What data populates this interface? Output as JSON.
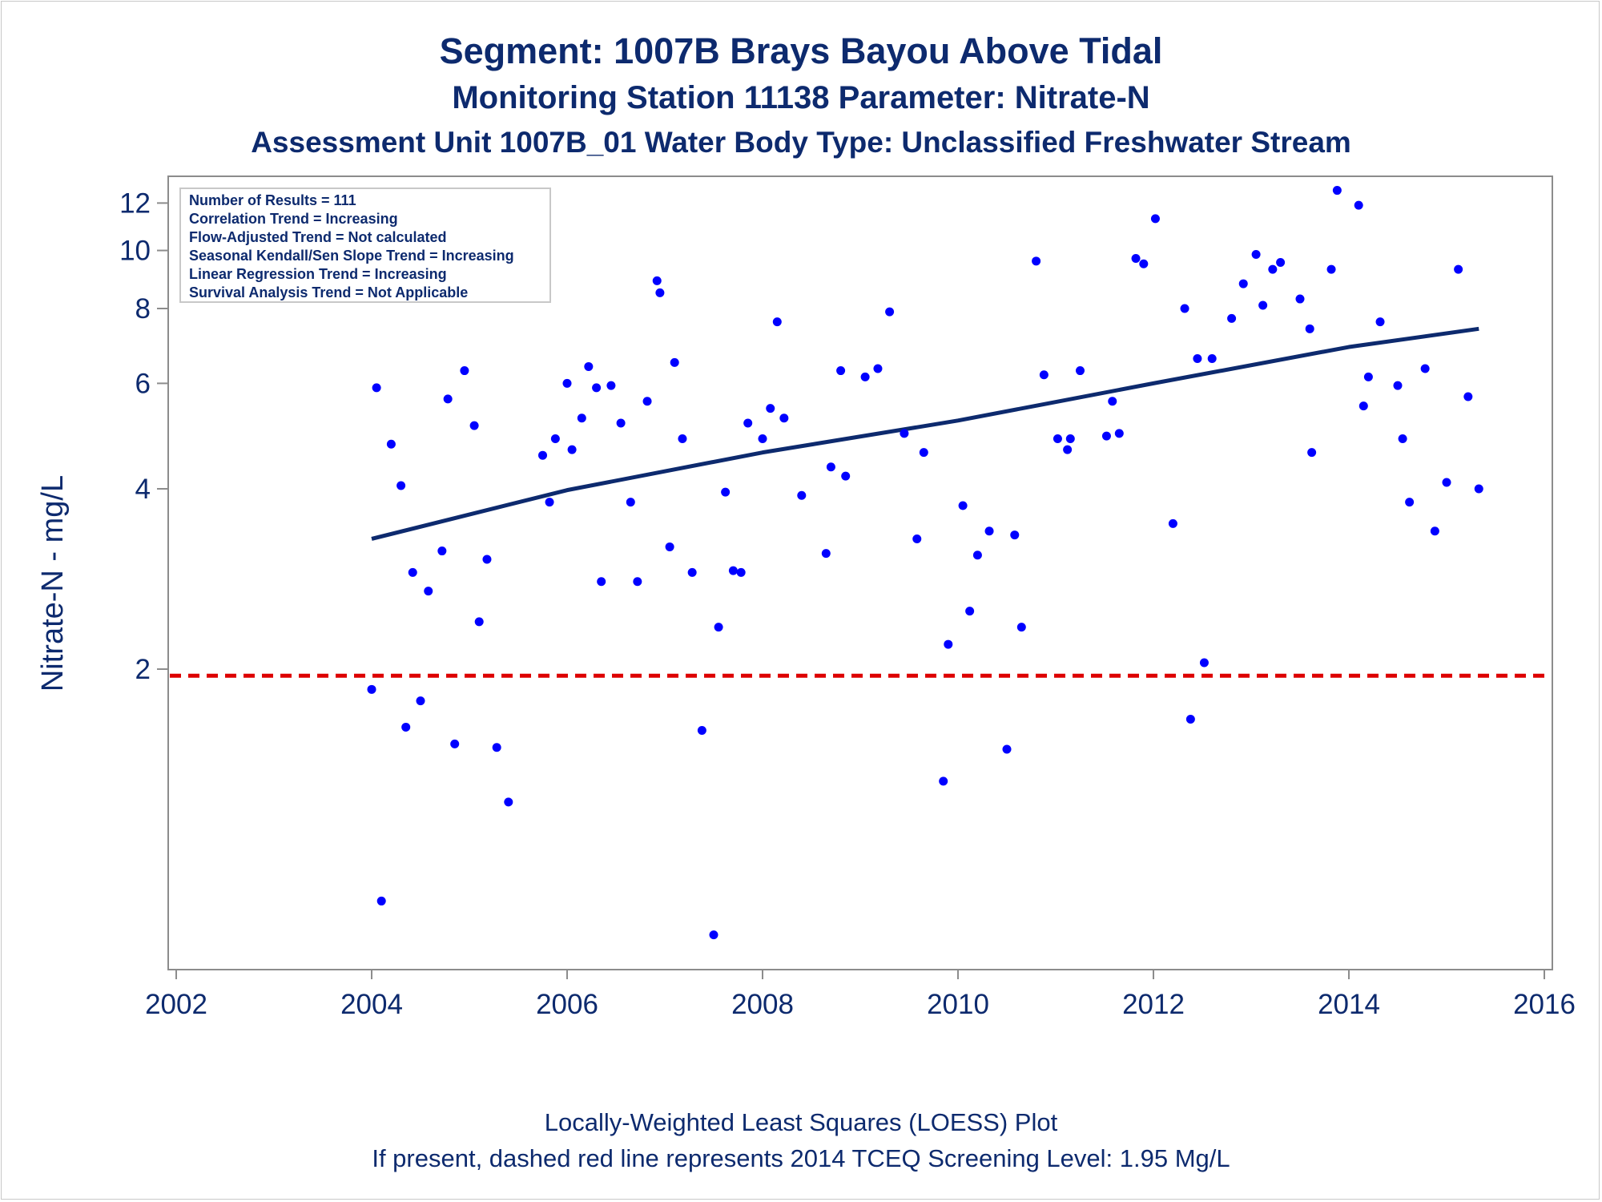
{
  "chart_data": {
    "type": "scatter",
    "title": "Segment: 1007B  Brays Bayou Above Tidal",
    "subtitle": "Monitoring Station 11138 Parameter: Nitrate-N",
    "subtitle2": "Assessment Unit 1007B_01   Water Body Type: Unclassified Freshwater Stream",
    "xlabel": "",
    "ylabel": "Nitrate-N - mg/L",
    "x_ticks": [
      "2002",
      "2004",
      "2006",
      "2008",
      "2010",
      "2012",
      "2014",
      "2016"
    ],
    "y_ticks": [
      "2",
      "4",
      "6",
      "8",
      "10",
      "12"
    ],
    "y_tick_values": [
      2,
      4,
      6,
      8,
      10,
      12
    ],
    "xlim": [
      2002,
      2016
    ],
    "ylim": [
      0.63,
      13.3
    ],
    "y_scale": "log",
    "grid": false,
    "legend_position": "top-left",
    "stats_box": [
      "Number of Results = 111",
      "Correlation Trend = Increasing",
      "Flow-Adjusted Trend = Not calculated",
      "Seasonal Kendall/Sen Slope Trend = Increasing",
      "Linear Regression Trend = Increasing",
      "Survival Analysis Trend = Not Applicable"
    ],
    "screening_level": {
      "value": 1.95,
      "color": "#dd0000"
    },
    "trend_line": {
      "x": [
        2004.0,
        2006.0,
        2008.0,
        2010.0,
        2012.0,
        2014.0,
        2015.33
      ],
      "y": [
        3.3,
        3.98,
        4.6,
        5.2,
        6.0,
        6.9,
        7.4
      ],
      "color": "#0d2a6e"
    },
    "point_color": "#0000ff",
    "points": [
      [
        2004.0,
        1.85
      ],
      [
        2004.05,
        5.9
      ],
      [
        2004.1,
        0.82
      ],
      [
        2004.2,
        4.75
      ],
      [
        2004.3,
        4.05
      ],
      [
        2004.35,
        1.6
      ],
      [
        2004.42,
        2.9
      ],
      [
        2004.5,
        1.77
      ],
      [
        2004.58,
        2.7
      ],
      [
        2004.72,
        3.15
      ],
      [
        2004.78,
        5.65
      ],
      [
        2004.85,
        1.5
      ],
      [
        2004.95,
        6.3
      ],
      [
        2005.05,
        5.1
      ],
      [
        2005.1,
        2.4
      ],
      [
        2005.18,
        3.05
      ],
      [
        2005.28,
        1.48
      ],
      [
        2005.4,
        1.2
      ],
      [
        2005.75,
        4.55
      ],
      [
        2005.82,
        3.8
      ],
      [
        2005.88,
        4.85
      ],
      [
        2006.0,
        6.0
      ],
      [
        2006.05,
        4.65
      ],
      [
        2006.15,
        5.25
      ],
      [
        2006.22,
        6.4
      ],
      [
        2006.3,
        5.9
      ],
      [
        2006.35,
        2.8
      ],
      [
        2006.45,
        5.95
      ],
      [
        2006.55,
        5.15
      ],
      [
        2006.65,
        3.8
      ],
      [
        2006.72,
        2.8
      ],
      [
        2006.82,
        5.6
      ],
      [
        2006.92,
        8.9
      ],
      [
        2006.95,
        8.5
      ],
      [
        2007.05,
        3.2
      ],
      [
        2007.1,
        6.5
      ],
      [
        2007.18,
        4.85
      ],
      [
        2007.28,
        2.9
      ],
      [
        2007.38,
        1.58
      ],
      [
        2007.5,
        0.72
      ],
      [
        2007.55,
        2.35
      ],
      [
        2007.62,
        3.95
      ],
      [
        2007.7,
        2.92
      ],
      [
        2007.78,
        2.9
      ],
      [
        2007.85,
        5.15
      ],
      [
        2008.0,
        4.85
      ],
      [
        2008.08,
        5.45
      ],
      [
        2008.15,
        7.6
      ],
      [
        2008.22,
        5.25
      ],
      [
        2008.4,
        3.9
      ],
      [
        2008.65,
        3.12
      ],
      [
        2008.7,
        4.35
      ],
      [
        2008.8,
        6.3
      ],
      [
        2008.85,
        4.2
      ],
      [
        2009.05,
        6.15
      ],
      [
        2009.18,
        6.35
      ],
      [
        2009.3,
        7.9
      ],
      [
        2009.45,
        4.95
      ],
      [
        2009.58,
        3.3
      ],
      [
        2009.65,
        4.6
      ],
      [
        2009.85,
        1.3
      ],
      [
        2009.9,
        2.2
      ],
      [
        2010.05,
        3.75
      ],
      [
        2010.12,
        2.5
      ],
      [
        2010.2,
        3.1
      ],
      [
        2010.32,
        3.4
      ],
      [
        2010.5,
        1.47
      ],
      [
        2010.58,
        3.35
      ],
      [
        2010.65,
        2.35
      ],
      [
        2010.8,
        9.6
      ],
      [
        2010.88,
        6.2
      ],
      [
        2011.02,
        4.85
      ],
      [
        2011.12,
        4.65
      ],
      [
        2011.15,
        4.85
      ],
      [
        2011.25,
        6.3
      ],
      [
        2011.52,
        4.9
      ],
      [
        2011.58,
        5.6
      ],
      [
        2011.65,
        4.95
      ],
      [
        2011.82,
        9.7
      ],
      [
        2011.9,
        9.5
      ],
      [
        2012.02,
        11.3
      ],
      [
        2012.2,
        3.5
      ],
      [
        2012.32,
        8.0
      ],
      [
        2012.38,
        1.65
      ],
      [
        2012.45,
        6.6
      ],
      [
        2012.52,
        2.05
      ],
      [
        2012.6,
        6.6
      ],
      [
        2012.8,
        7.7
      ],
      [
        2012.92,
        8.8
      ],
      [
        2013.05,
        9.85
      ],
      [
        2013.12,
        8.1
      ],
      [
        2013.22,
        9.3
      ],
      [
        2013.3,
        9.55
      ],
      [
        2013.5,
        8.3
      ],
      [
        2013.6,
        7.4
      ],
      [
        2013.62,
        4.6
      ],
      [
        2013.82,
        9.3
      ],
      [
        2013.88,
        12.6
      ],
      [
        2014.1,
        11.9
      ],
      [
        2014.15,
        5.5
      ],
      [
        2014.2,
        6.15
      ],
      [
        2014.32,
        7.6
      ],
      [
        2014.5,
        5.95
      ],
      [
        2014.55,
        4.85
      ],
      [
        2014.62,
        3.8
      ],
      [
        2014.78,
        6.35
      ],
      [
        2014.88,
        3.4
      ],
      [
        2015.0,
        4.1
      ],
      [
        2015.12,
        9.3
      ],
      [
        2015.22,
        5.7
      ],
      [
        2015.33,
        4.0
      ]
    ]
  }
}
